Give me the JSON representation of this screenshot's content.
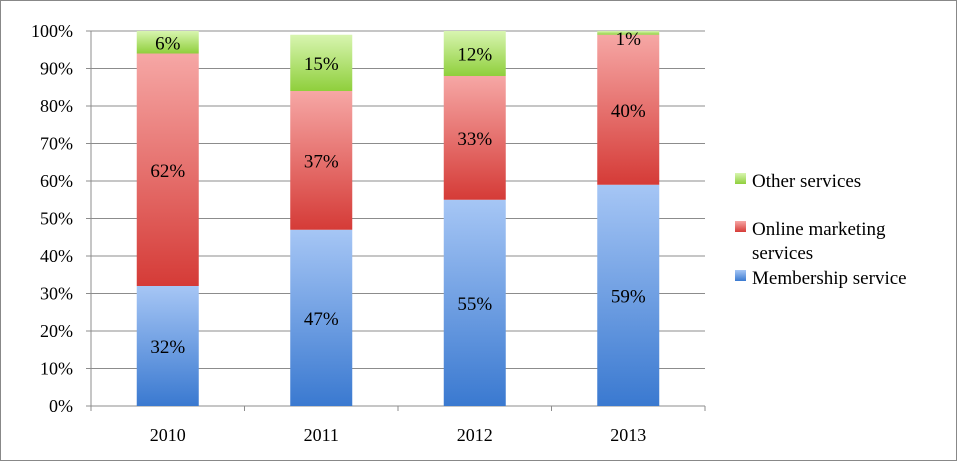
{
  "chart_data": {
    "type": "bar",
    "stacked": true,
    "categories": [
      "2010",
      "2011",
      "2012",
      "2013"
    ],
    "series": [
      {
        "name": "Membership service",
        "values": [
          32,
          47,
          55,
          59
        ],
        "labels": [
          "32%",
          "47%",
          "55%",
          "59%"
        ],
        "color_top": "#a6c6f5",
        "color_bottom": "#3a79d0"
      },
      {
        "name": "Online marketing services",
        "values": [
          62,
          37,
          33,
          40
        ],
        "labels": [
          "62%",
          "37%",
          "33%",
          "40%"
        ],
        "color_top": "#f6a7a5",
        "color_bottom": "#d53b37"
      },
      {
        "name": "Other services",
        "values": [
          6,
          15,
          12,
          1
        ],
        "labels": [
          "6%",
          "15%",
          "12%",
          "1%"
        ],
        "color_top": "#d8f5b0",
        "color_bottom": "#8fcf3c"
      }
    ],
    "y_ticks": [
      "0%",
      "10%",
      "20%",
      "30%",
      "40%",
      "50%",
      "60%",
      "70%",
      "80%",
      "90%",
      "100%"
    ],
    "ylim": [
      0,
      100
    ],
    "grid": true,
    "legend_position": "right",
    "legend_order": [
      "Other services",
      "Online marketing services",
      "Membership service"
    ],
    "legend_display_lines": {
      "Other services": [
        "Other services"
      ],
      "Online marketing services": [
        "Online marketing",
        "services"
      ],
      "Membership service": [
        "Membership service"
      ]
    }
  }
}
